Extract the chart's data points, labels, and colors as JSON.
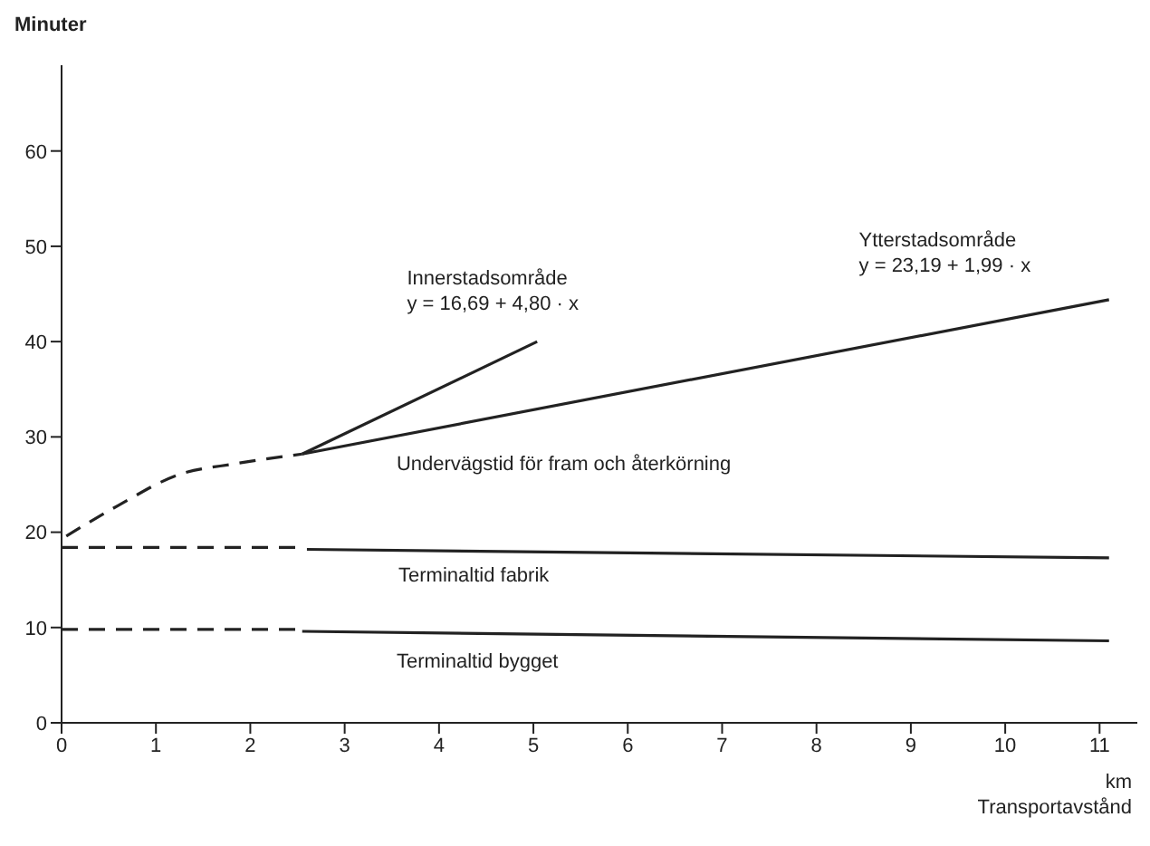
{
  "chart_data": {
    "type": "line",
    "xlabel": "km\nTransportavstånd",
    "ylabel": "Minuter",
    "xlim": [
      0,
      11.4
    ],
    "ylim": [
      0,
      69
    ],
    "xticks": [
      0,
      1,
      2,
      3,
      4,
      5,
      6,
      7,
      8,
      9,
      10,
      11
    ],
    "yticks": [
      0,
      10,
      20,
      30,
      40,
      50,
      60
    ],
    "grid": false,
    "marker": "none",
    "series": [
      {
        "color": "#222222",
        "line_style": "solid",
        "x": [
          2.55,
          5.04
        ],
        "values": [
          28.2,
          40.0
        ]
      },
      {
        "color": "#222222",
        "line_style": "solid",
        "x": [
          2.55,
          11.1
        ],
        "values": [
          28.2,
          44.4
        ]
      },
      {
        "color": "#222222",
        "line_style": "dashed",
        "x": [
          0.05,
          0.6,
          1.23,
          1.85,
          2.55
        ],
        "values": [
          19.6,
          22.8,
          26.0,
          27.2,
          28.2
        ]
      },
      {
        "color": "#222222",
        "line_style": "dashed",
        "x": [
          0,
          2.55
        ],
        "values": [
          18.4,
          18.4
        ]
      },
      {
        "color": "#222222",
        "line_style": "solid",
        "x": [
          2.6,
          11.1
        ],
        "values": [
          18.2,
          17.3
        ]
      },
      {
        "color": "#222222",
        "line_style": "dashed",
        "x": [
          0,
          2.55
        ],
        "values": [
          9.8,
          9.8
        ]
      },
      {
        "color": "#222222",
        "line_style": "solid",
        "x": [
          2.55,
          11.1
        ],
        "values": [
          9.6,
          8.6
        ]
      }
    ],
    "annotations": [
      "Innerstadsområde\ny = 16,69 + 4,80 · x",
      "Ytterstadsområde\ny = 23,19 + 1,99 · x",
      "Undervägstid för fram och återkörning",
      "Terminaltid fabrik",
      "Terminaltid bygget"
    ]
  }
}
